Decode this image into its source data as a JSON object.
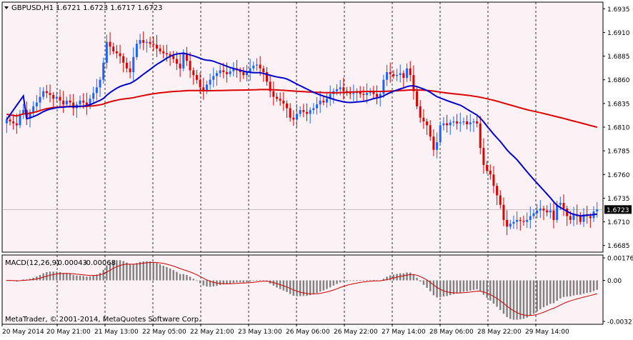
{
  "header": {
    "symbol_label": "GBPUSD,H1",
    "ohlc_label": "1.6721 1.6723 1.6717 1.6723"
  },
  "macd": {
    "label": "MACD(12,26,9)",
    "main_value": "-0.00043",
    "signal_value": "-0.00068",
    "axis_labels": [
      "0.00176",
      "0.00",
      "-0.00321"
    ],
    "ylim": [
      -0.00321,
      0.00176
    ]
  },
  "footer": {
    "copyright": "MetaTrader, © 2001-2014, MetaQuotes Software Corp."
  },
  "price_axis": {
    "tick_labels": [
      "1.6935",
      "1.6910",
      "1.6885",
      "1.6860",
      "1.6835",
      "1.6810",
      "1.6785",
      "1.6760",
      "1.6735",
      "1.6710",
      "1.6685"
    ],
    "current_price_label": "1.6723"
  },
  "time_axis": {
    "labels": [
      "20 May 2014",
      "20 May 21:00",
      "21 May 13:00",
      "22 May 05:00",
      "22 May 21:00",
      "23 May 13:00",
      "26 May 06:00",
      "26 May 22:00",
      "27 May 14:00",
      "28 May 06:00",
      "28 May 22:00",
      "29 May 14:00"
    ]
  },
  "colors": {
    "background": "#fcf1f4",
    "bull_candle": "#1e64ff",
    "bear_candle": "#dc0000",
    "ma_fast": "#0000cc",
    "ma_slow": "#dc0000",
    "macd_hist": "#808080",
    "macd_signal": "#cc0000",
    "grid": "#000000",
    "current_price_box": "#000000"
  },
  "chart_data": {
    "type": "candlestick",
    "symbol": "GBPUSD",
    "timeframe": "H1",
    "ylim": [
      1.6678,
      1.6942
    ],
    "current_price": 1.6723,
    "closes": [
      1.6818,
      1.6816,
      1.6814,
      1.6812,
      1.6824,
      1.6828,
      1.682,
      1.6826,
      1.6832,
      1.6836,
      1.6842,
      1.6848,
      1.6846,
      1.6844,
      1.684,
      1.6842,
      1.6838,
      1.6834,
      1.6838,
      1.6836,
      1.683,
      1.6834,
      1.6838,
      1.6836,
      1.6832,
      1.684,
      1.6846,
      1.6852,
      1.686,
      1.6878,
      1.69,
      1.6895,
      1.689,
      1.6888,
      1.6885,
      1.6878,
      1.6872,
      1.6868,
      1.6884,
      1.6898,
      1.6902,
      1.6899,
      1.69,
      1.6898,
      1.6897,
      1.6893,
      1.689,
      1.6888,
      1.6887,
      1.6885,
      1.6882,
      1.6877,
      1.6872,
      1.6888,
      1.688,
      1.687,
      1.6865,
      1.686,
      1.6852,
      1.6848,
      1.6855,
      1.686,
      1.6864,
      1.6867,
      1.687,
      1.6868,
      1.6866,
      1.6869,
      1.6872,
      1.687,
      1.6868,
      1.6865,
      1.6868,
      1.6872,
      1.6875,
      1.6876,
      1.6872,
      1.6868,
      1.6858,
      1.6848,
      1.6842,
      1.684,
      1.6838,
      1.6835,
      1.683,
      1.682,
      1.6818,
      1.6824,
      1.6828,
      1.6826,
      1.6824,
      1.6828,
      1.683,
      1.6834,
      1.6838,
      1.6836,
      1.684,
      1.6845,
      1.6848,
      1.685,
      1.6852,
      1.6848,
      1.6846,
      1.6845,
      1.6846,
      1.6848,
      1.6845,
      1.6844,
      1.6846,
      1.6847,
      1.6845,
      1.6842,
      1.6845,
      1.686,
      1.6868,
      1.6866,
      1.6864,
      1.6865,
      1.6867,
      1.6862,
      1.6872,
      1.6865,
      1.6848,
      1.6832,
      1.682,
      1.6816,
      1.6812,
      1.68,
      1.6786,
      1.6794,
      1.6812,
      1.6814,
      1.6812,
      1.6815,
      1.6816,
      1.6814,
      1.6815,
      1.6816,
      1.6813,
      1.6815,
      1.6816,
      1.6814,
      1.6788,
      1.677,
      1.6764,
      1.676,
      1.6748,
      1.6738,
      1.6728,
      1.6712,
      1.6705,
      1.6708,
      1.671,
      1.6712,
      1.6711,
      1.671,
      1.6712,
      1.6716,
      1.6719,
      1.6722,
      1.6724,
      1.6722,
      1.672,
      1.6722,
      1.6712,
      1.6728,
      1.673,
      1.6724,
      1.6716,
      1.6712,
      1.6718,
      1.6716,
      1.671,
      1.6718,
      1.6716,
      1.6714,
      1.6721,
      1.6723
    ]
  }
}
